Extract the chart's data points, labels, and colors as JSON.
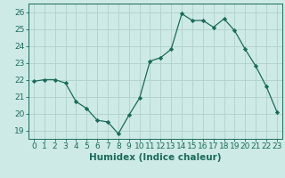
{
  "x": [
    0,
    1,
    2,
    3,
    4,
    5,
    6,
    7,
    8,
    9,
    10,
    11,
    12,
    13,
    14,
    15,
    16,
    17,
    18,
    19,
    20,
    21,
    22,
    23
  ],
  "y": [
    21.9,
    22.0,
    22.0,
    21.8,
    20.7,
    20.3,
    19.6,
    19.5,
    18.8,
    19.9,
    20.9,
    23.1,
    23.3,
    23.8,
    25.9,
    25.5,
    25.5,
    25.1,
    25.6,
    24.9,
    23.8,
    22.8,
    21.6,
    20.1
  ],
  "line_color": "#1a6b5a",
  "marker": "D",
  "marker_size": 2.2,
  "bg_color": "#cdeae6",
  "grid_color": "#b0d0cb",
  "ylabel_ticks": [
    19,
    20,
    21,
    22,
    23,
    24,
    25,
    26
  ],
  "xlabel": "Humidex (Indice chaleur)",
  "xlabel_fontsize": 7.5,
  "tick_fontsize": 6.5,
  "ylim": [
    18.5,
    26.5
  ],
  "xlim": [
    -0.5,
    23.5
  ]
}
